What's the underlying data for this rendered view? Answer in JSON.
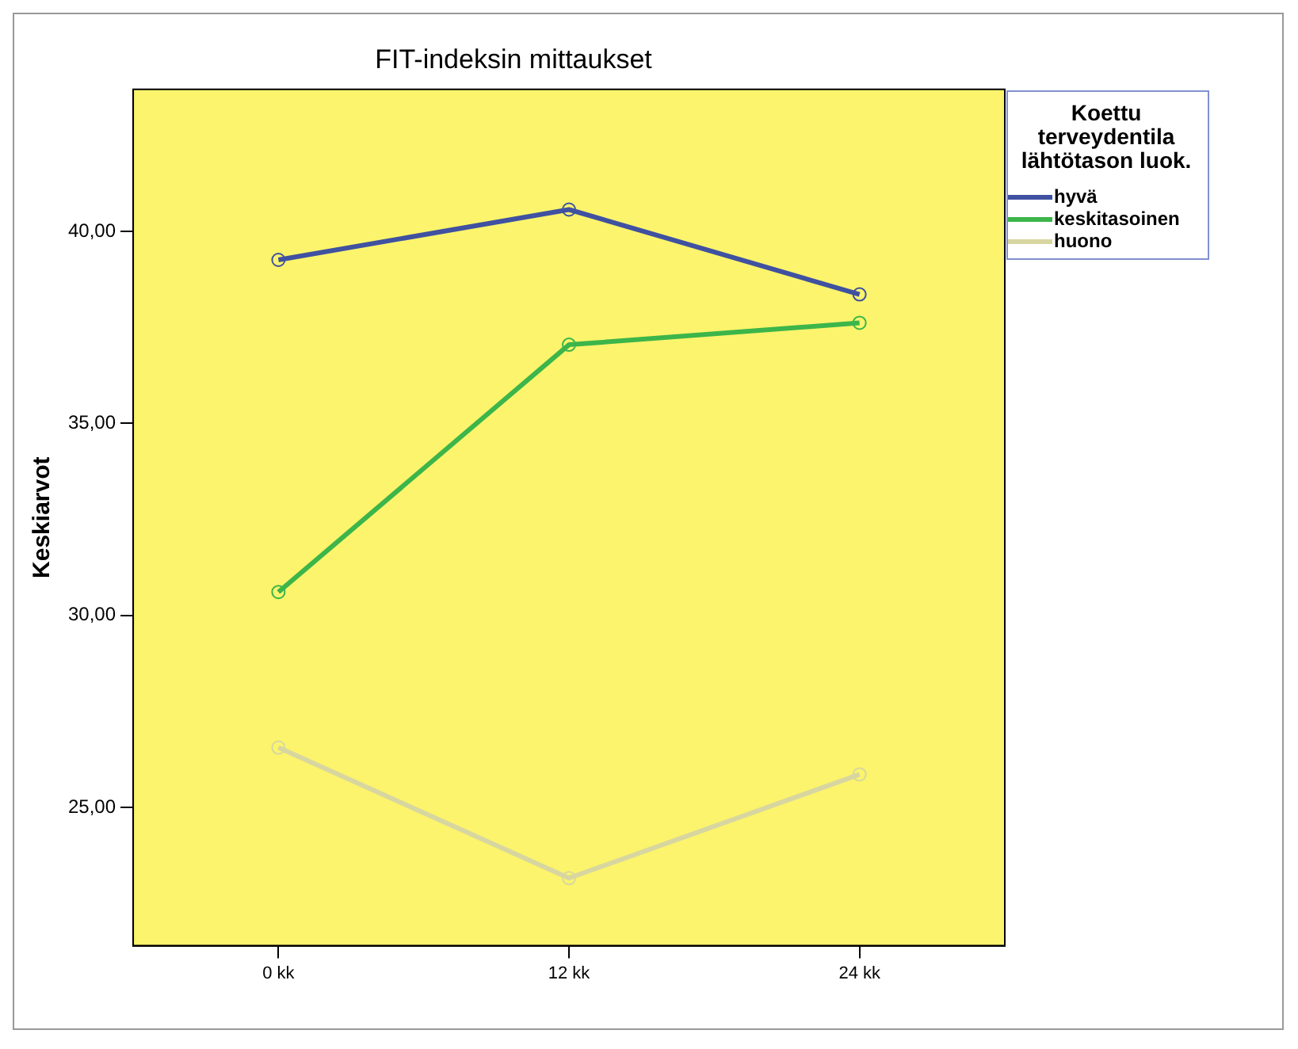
{
  "chart_data": {
    "type": "line",
    "title": "FIT-indeksin mittaukset",
    "ylabel": "Keskiarvot",
    "legend_title": "Koettu terveydentila lähtötason luok.",
    "categories": [
      "0 kk",
      "12 kk",
      "24 kk"
    ],
    "series": [
      {
        "name": "hyvä",
        "color": "#3f51a0",
        "values": [
          39.26,
          40.57,
          38.36
        ]
      },
      {
        "name": "keskitasoinen",
        "color": "#3cb54a",
        "values": [
          30.61,
          37.05,
          37.62
        ]
      },
      {
        "name": "huono",
        "color": "#d8d6a0",
        "values": [
          26.56,
          23.16,
          25.86
        ]
      }
    ],
    "ylim": [
      21.4,
      43.7
    ],
    "yticks": [
      {
        "value": 25,
        "label": "25,00"
      },
      {
        "value": 30,
        "label": "30,00"
      },
      {
        "value": 35,
        "label": "35,00"
      },
      {
        "value": 40,
        "label": "40,00"
      }
    ],
    "grid": false,
    "legend": "top right",
    "marker": "circle",
    "line_style": "solid"
  }
}
